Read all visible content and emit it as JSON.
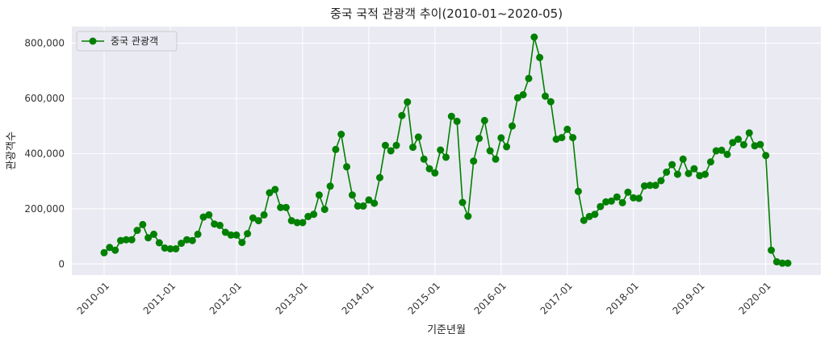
{
  "chart_data": {
    "type": "line",
    "title": "중국 국적 관광객 추이(2010-01~2020-05)",
    "xlabel": "기준년월",
    "ylabel": "관광객수",
    "x_start": "2010-01",
    "x_ticks": [
      "2010-01",
      "2011-01",
      "2012-01",
      "2013-01",
      "2014-01",
      "2015-01",
      "2016-01",
      "2017-01",
      "2018-01",
      "2019-01",
      "2020-01"
    ],
    "y_ticks": [
      "0",
      "200,000",
      "400,000",
      "600,000",
      "800,000"
    ],
    "ylim": [
      -40000,
      860000
    ],
    "grid": true,
    "legend_position": "top-left",
    "series": [
      {
        "name": "중국 관광객",
        "color": "#008000",
        "x": [
          "2010-01",
          "2010-02",
          "2010-03",
          "2010-04",
          "2010-05",
          "2010-06",
          "2010-07",
          "2010-08",
          "2010-09",
          "2010-10",
          "2010-11",
          "2010-12",
          "2011-01",
          "2011-02",
          "2011-03",
          "2011-04",
          "2011-05",
          "2011-06",
          "2011-07",
          "2011-08",
          "2011-09",
          "2011-10",
          "2011-11",
          "2011-12",
          "2012-01",
          "2012-02",
          "2012-03",
          "2012-04",
          "2012-05",
          "2012-06",
          "2012-07",
          "2012-08",
          "2012-09",
          "2012-10",
          "2012-11",
          "2012-12",
          "2013-01",
          "2013-02",
          "2013-03",
          "2013-04",
          "2013-05",
          "2013-06",
          "2013-07",
          "2013-08",
          "2013-09",
          "2013-10",
          "2013-11",
          "2013-12",
          "2014-01",
          "2014-02",
          "2014-03",
          "2014-04",
          "2014-05",
          "2014-06",
          "2014-07",
          "2014-08",
          "2014-09",
          "2014-10",
          "2014-11",
          "2014-12",
          "2015-01",
          "2015-02",
          "2015-03",
          "2015-04",
          "2015-05",
          "2015-06",
          "2015-07",
          "2015-08",
          "2015-09",
          "2015-10",
          "2015-11",
          "2015-12",
          "2016-01",
          "2016-02",
          "2016-03",
          "2016-04",
          "2016-05",
          "2016-06",
          "2016-07",
          "2016-08",
          "2016-09",
          "2016-10",
          "2016-11",
          "2016-12",
          "2017-01",
          "2017-02",
          "2017-03",
          "2017-04",
          "2017-05",
          "2017-06",
          "2017-07",
          "2017-08",
          "2017-09",
          "2017-10",
          "2017-11",
          "2017-12",
          "2018-01",
          "2018-02",
          "2018-03",
          "2018-04",
          "2018-05",
          "2018-06",
          "2018-07",
          "2018-08",
          "2018-09",
          "2018-10",
          "2018-11",
          "2018-12",
          "2019-01",
          "2019-02",
          "2019-03",
          "2019-04",
          "2019-05",
          "2019-06",
          "2019-07",
          "2019-08",
          "2019-09",
          "2019-10",
          "2019-11",
          "2019-12",
          "2020-01",
          "2020-02",
          "2020-03",
          "2020-04",
          "2020-05"
        ],
        "values": [
          41000,
          60000,
          50000,
          85000,
          88000,
          88000,
          122000,
          143000,
          95000,
          108000,
          77000,
          58000,
          55000,
          55000,
          75000,
          88000,
          85000,
          108000,
          170000,
          178000,
          145000,
          140000,
          115000,
          105000,
          105000,
          78000,
          110000,
          167000,
          157000,
          178000,
          258000,
          270000,
          205000,
          205000,
          157000,
          150000,
          150000,
          172000,
          180000,
          250000,
          198000,
          282000,
          415000,
          470000,
          352000,
          250000,
          210000,
          210000,
          232000,
          220000,
          313000,
          430000,
          410000,
          430000,
          538000,
          587000,
          423000,
          460000,
          380000,
          345000,
          330000,
          413000,
          387000,
          535000,
          517000,
          223000,
          173000,
          373000,
          455000,
          520000,
          410000,
          380000,
          457000,
          425000,
          500000,
          602000,
          613000,
          672000,
          822000,
          748000,
          608000,
          588000,
          452000,
          458000,
          488000,
          458000,
          263000,
          158000,
          172000,
          180000,
          208000,
          225000,
          228000,
          243000,
          222000,
          260000,
          240000,
          238000,
          283000,
          285000,
          285000,
          302000,
          333000,
          360000,
          325000,
          380000,
          328000,
          345000,
          320000,
          325000,
          370000,
          410000,
          412000,
          397000,
          440000,
          452000,
          432000,
          475000,
          428000,
          433000,
          393000,
          50000,
          8000,
          3000,
          3000
        ]
      }
    ]
  }
}
